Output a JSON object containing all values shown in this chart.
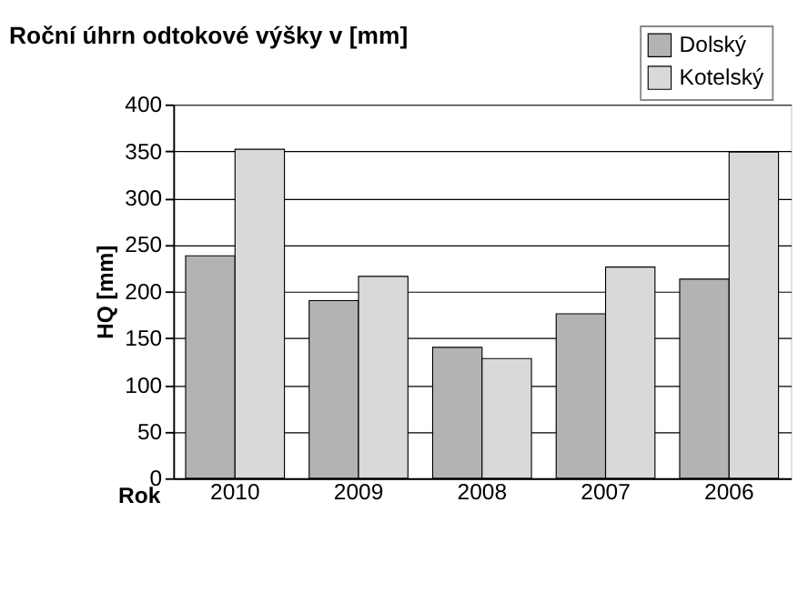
{
  "chart_data": {
    "type": "bar",
    "title": "Roční úhrn odtokové výšky v [mm]",
    "xlabel": "Rok",
    "ylabel": "HQ [mm]",
    "categories": [
      "2010",
      "2009",
      "2008",
      "2007",
      "2006"
    ],
    "series": [
      {
        "name": "Dolský",
        "color": "#b3b3b3",
        "values": [
          238,
          190,
          140,
          176,
          213
        ]
      },
      {
        "name": "Kotelský",
        "color": "#d9d9d9",
        "values": [
          352,
          216,
          128,
          226,
          349
        ]
      }
    ],
    "ylim": [
      0,
      400
    ],
    "yticks": [
      0,
      50,
      100,
      150,
      200,
      250,
      300,
      350,
      400
    ],
    "grid": "y",
    "legend": "top right"
  }
}
